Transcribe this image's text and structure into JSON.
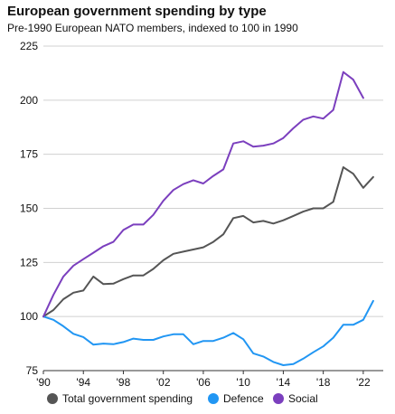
{
  "chart_data": {
    "type": "line",
    "title": "European government spending by type",
    "subtitle": "Pre-1990 European NATO  members, indexed to 100 in 1990",
    "xlabel": "",
    "ylabel": "",
    "ylim": [
      75,
      225
    ],
    "xlim": [
      1990,
      2024
    ],
    "yticks": [
      75,
      100,
      125,
      150,
      175,
      200,
      225
    ],
    "xticks": [
      {
        "value": 1990,
        "label": "'90"
      },
      {
        "value": 1994,
        "label": "'94"
      },
      {
        "value": 1998,
        "label": "'98"
      },
      {
        "value": 2002,
        "label": "'02"
      },
      {
        "value": 2006,
        "label": "'06"
      },
      {
        "value": 2010,
        "label": "'10"
      },
      {
        "value": 2014,
        "label": "'14"
      },
      {
        "value": 2018,
        "label": "'18"
      },
      {
        "value": 2022,
        "label": "'22"
      }
    ],
    "grid": "horizontal",
    "legend": "bottom",
    "series": [
      {
        "name": "Total government spending",
        "color": "#555555",
        "x": [
          1990,
          1991,
          1992,
          1993,
          1994,
          1995,
          1996,
          1997,
          1998,
          1999,
          2000,
          2001,
          2002,
          2003,
          2004,
          2005,
          2006,
          2007,
          2008,
          2009,
          2010,
          2011,
          2012,
          2013,
          2014,
          2015,
          2016,
          2017,
          2018,
          2019,
          2020,
          2021,
          2022,
          2023
        ],
        "values": [
          100,
          103,
          108,
          111,
          112,
          118.5,
          115,
          115.2,
          117.3,
          119,
          119,
          122,
          126,
          129,
          130,
          131,
          132,
          134.5,
          138,
          145.5,
          146.5,
          143.5,
          144.2,
          143,
          144.5,
          146.5,
          148.5,
          150,
          150,
          153,
          169,
          166,
          159.5,
          164.5
        ]
      },
      {
        "name": "Defence",
        "color": "#2196f3",
        "x": [
          1990,
          1991,
          1992,
          1993,
          1994,
          1995,
          1996,
          1997,
          1998,
          1999,
          2000,
          2001,
          2002,
          2003,
          2004,
          2005,
          2006,
          2007,
          2008,
          2009,
          2010,
          2011,
          2012,
          2013,
          2014,
          2015,
          2016,
          2017,
          2018,
          2019,
          2020,
          2021,
          2022,
          2023
        ],
        "values": [
          100,
          98.5,
          95.5,
          92,
          90.5,
          87,
          87.5,
          87.2,
          88.2,
          89.8,
          89.2,
          89.2,
          90.8,
          91.8,
          91.8,
          87.2,
          88.7,
          88.7,
          90.2,
          92.4,
          89.5,
          83,
          81.5,
          79,
          77.5,
          78,
          80.5,
          83.5,
          86.2,
          90.2,
          96.2,
          96.2,
          98.5,
          107.2
        ]
      },
      {
        "name": "Social",
        "color": "#7b3fbe",
        "x": [
          1990,
          1991,
          1992,
          1993,
          1994,
          1995,
          1996,
          1997,
          1998,
          1999,
          2000,
          2001,
          2002,
          2003,
          2004,
          2005,
          2006,
          2007,
          2008,
          2009,
          2010,
          2011,
          2012,
          2013,
          2014,
          2015,
          2016,
          2017,
          2018,
          2019,
          2020,
          2021,
          2022
        ],
        "values": [
          100,
          110,
          118.5,
          123.5,
          126.5,
          129.5,
          132.5,
          134.5,
          140,
          142.5,
          142.5,
          147,
          153.5,
          158.5,
          161.2,
          163,
          161.5,
          165,
          168,
          180,
          181,
          178.5,
          179,
          180,
          182.5,
          187,
          191,
          192.5,
          191.5,
          195.5,
          213,
          209.5,
          201
        ]
      }
    ]
  }
}
